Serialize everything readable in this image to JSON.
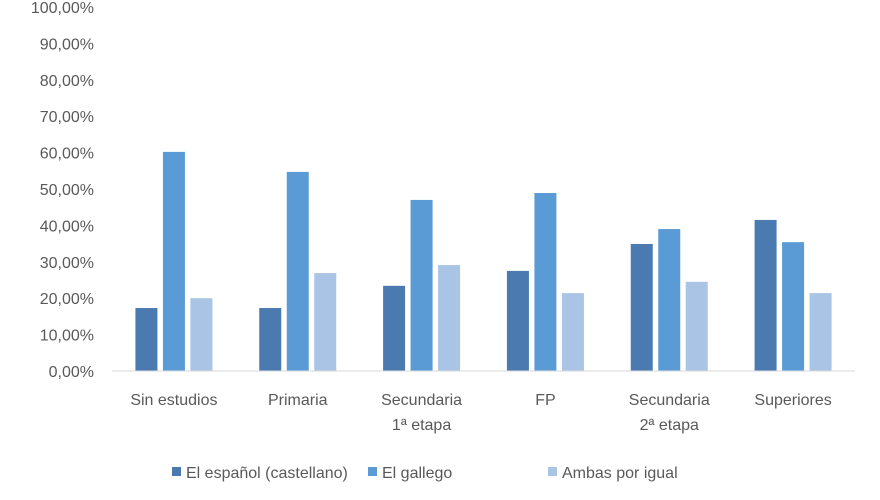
{
  "chart_data": {
    "type": "bar",
    "title": "",
    "xlabel": "",
    "ylabel": "",
    "ylim": [
      0,
      100
    ],
    "yticks": [
      "0,00%",
      "10,00%",
      "20,00%",
      "30,00%",
      "40,00%",
      "50,00%",
      "60,00%",
      "70,00%",
      "80,00%",
      "90,00%",
      "100,00%"
    ],
    "categories": [
      [
        "Sin estudios"
      ],
      [
        "Primaria"
      ],
      [
        "Secundaria",
        "1ª etapa"
      ],
      [
        "FP"
      ],
      [
        "Secundaria",
        "2ª etapa"
      ],
      [
        "Superiores"
      ]
    ],
    "series": [
      {
        "name": "El español (castellano)",
        "color": "#4a7ab0",
        "values": [
          17.3,
          17.3,
          23.4,
          27.5,
          34.9,
          41.5
        ]
      },
      {
        "name": "El gallego",
        "color": "#5b9bd5",
        "values": [
          60.2,
          54.7,
          47.0,
          48.9,
          39.0,
          35.4
        ]
      },
      {
        "name": "Ambas por igual",
        "color": "#a9c4e4",
        "values": [
          20.0,
          26.9,
          29.1,
          21.4,
          24.5,
          21.4
        ]
      }
    ],
    "grid": false,
    "legend": "bottom"
  }
}
